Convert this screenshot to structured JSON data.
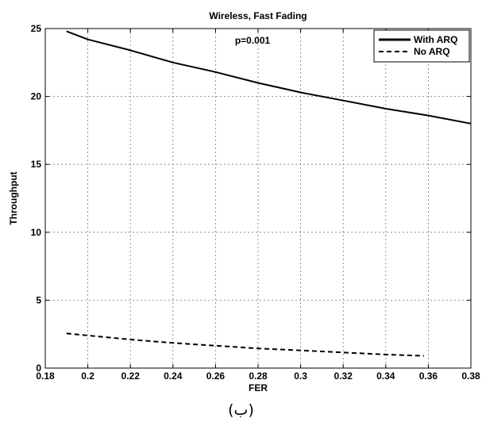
{
  "caption": "(ب)",
  "chart_data": {
    "type": "line",
    "title": "Wireless, Fast Fading",
    "xlabel": "FER",
    "ylabel": "Throughput",
    "annotation": "p=0.001",
    "xlim": [
      0.18,
      0.38
    ],
    "ylim": [
      0,
      25
    ],
    "xticks": [
      "0.18",
      "0.2",
      "0.22",
      "0.24",
      "0.26",
      "0.28",
      "0.3",
      "0.32",
      "0.34",
      "0.36",
      "0.38"
    ],
    "yticks": [
      "0",
      "5",
      "10",
      "15",
      "20",
      "25"
    ],
    "grid": true,
    "legend_position": "top-right",
    "series": [
      {
        "name": "With ARQ",
        "style": "solid",
        "color": "#000000",
        "x": [
          0.19,
          0.2,
          0.22,
          0.24,
          0.26,
          0.28,
          0.3,
          0.32,
          0.34,
          0.36,
          0.38
        ],
        "y": [
          24.8,
          24.2,
          23.4,
          22.5,
          21.8,
          21.0,
          20.3,
          19.7,
          19.1,
          18.6,
          18.0
        ]
      },
      {
        "name": "No ARQ",
        "style": "dashed",
        "color": "#000000",
        "x": [
          0.19,
          0.2,
          0.22,
          0.24,
          0.26,
          0.28,
          0.3,
          0.32,
          0.34,
          0.358
        ],
        "y": [
          2.55,
          2.4,
          2.1,
          1.85,
          1.65,
          1.45,
          1.3,
          1.15,
          1.0,
          0.9
        ]
      }
    ]
  }
}
